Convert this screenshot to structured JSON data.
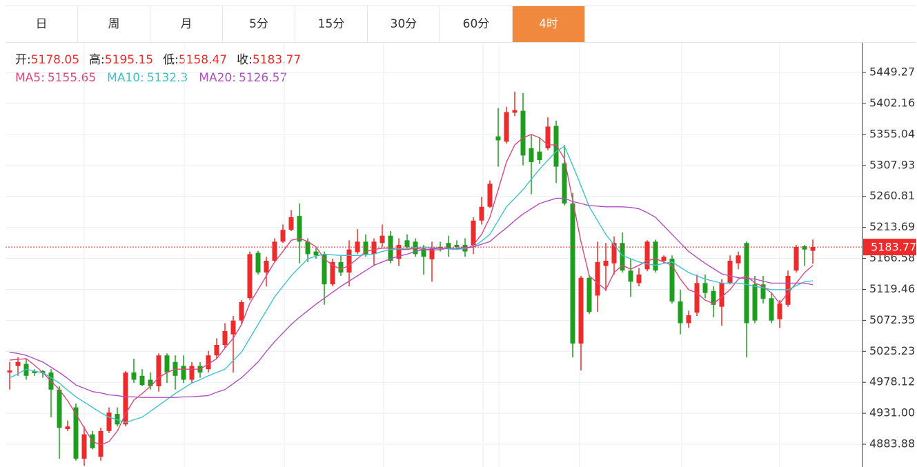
{
  "tabs": [
    "日",
    "周",
    "月",
    "5分",
    "15分",
    "30分",
    "60分",
    "4时"
  ],
  "active_tab": 7,
  "chart_data": {
    "type": "candlestick",
    "ohlc_labels": [
      "开:",
      "高:",
      "低:",
      "收:"
    ],
    "up_color": "#ee2a2a",
    "down_color": "#1d9e1d",
    "ylim": [
      4849.3,
      5494.4
    ],
    "yticks": [
      5449.27,
      5402.16,
      5355.04,
      5307.93,
      5260.81,
      5213.69,
      5166.58,
      5119.46,
      5072.35,
      5025.23,
      4978.12,
      {
        "value": 4931,
        "label": "4931.00"
      },
      4883.88
    ],
    "grid": true,
    "open": [
      4993,
      5003,
      5006,
      4995,
      4995,
      4993,
      4967,
      4907,
      4940,
      4862,
      4899,
      4865,
      4904,
      4930,
      4914,
      4993,
      4988,
      4982,
      4972,
      5019,
      5009,
      5003,
      4982,
      5003,
      4998,
      5019,
      5035,
      5051,
      5072,
      5106,
      5175,
      5145,
      5163,
      5192,
      5210,
      5231,
      5192,
      5177,
      5173,
      5127,
      5161,
      5145,
      5176,
      5192,
      5173,
      5190,
      5201,
      5166,
      5194,
      5192,
      5182,
      5165,
      5184,
      5190,
      5187,
      5187,
      5187,
      5224,
      5245,
      5352,
      5344,
      5388,
      5391,
      5334,
      5329,
      5334,
      5368,
      5311,
      5250,
      5037,
      5137,
      5110,
      5155,
      5159,
      5190,
      5148,
      5129,
      5150,
      5192,
      5163,
      5166,
      5101,
      5068,
      5084,
      5129,
      5117,
      5093,
      5129,
      5159,
      5190,
      5127,
      5127,
      5106,
      5074,
      5096,
      5148,
      5185,
      5178.05
    ],
    "high": [
      5009,
      5016,
      5014,
      4998,
      4997,
      4998,
      4972,
      4920,
      4946,
      4911,
      4904,
      4909,
      4940,
      4940,
      4995,
      5014,
      4998,
      4993,
      5022,
      5022,
      5019,
      5019,
      5009,
      5009,
      5026,
      5045,
      5068,
      5079,
      5103,
      5177,
      5178,
      5169,
      5197,
      5218,
      5240,
      5250,
      5197,
      5182,
      5177,
      5166,
      5171,
      5194,
      5211,
      5203,
      5197,
      5218,
      5208,
      5197,
      5203,
      5197,
      5187,
      5192,
      5192,
      5201,
      5194,
      5197,
      5229,
      5260,
      5285,
      5395,
      5397,
      5420,
      5418,
      5355,
      5350,
      5381,
      5376,
      5339,
      5266,
      5140,
      5142,
      5192,
      5190,
      5200,
      5206,
      5166,
      5152,
      5194,
      5195,
      5171,
      5171,
      5119,
      5087,
      5142,
      5142,
      5124,
      5135,
      5171,
      5177,
      5192,
      5140,
      5140,
      5114,
      5103,
      5148,
      5187,
      5187,
      5195.15
    ],
    "low": [
      4967,
      4988,
      4982,
      4988,
      4985,
      4925,
      4862,
      4904,
      4859,
      4851,
      4876,
      4859,
      4901,
      4911,
      4911,
      4977,
      4972,
      4967,
      4964,
      4977,
      4967,
      4977,
      4977,
      4985,
      4993,
      5014,
      5030,
      4993,
      5066,
      5103,
      5142,
      5124,
      5161,
      5190,
      5208,
      5159,
      5161,
      5166,
      5096,
      5124,
      5140,
      5124,
      5173,
      5169,
      5155,
      5184,
      5159,
      5155,
      5180,
      5169,
      5142,
      5131,
      5177,
      5169,
      5180,
      5169,
      5173,
      5218,
      5243,
      5306,
      5341,
      5383,
      5308,
      5264,
      5310,
      5331,
      5281,
      5247,
      5016,
      4996,
      5082,
      5085,
      5117,
      5142,
      5145,
      5108,
      5124,
      5147,
      5145,
      5159,
      5098,
      5051,
      5061,
      5079,
      5106,
      5077,
      5064,
      5127,
      5150,
      5016,
      5068,
      5098,
      5068,
      5061,
      5093,
      5145,
      5155,
      5158.47
    ],
    "close": [
      4996,
      5009,
      4988,
      4992,
      4992,
      4967,
      4909,
      4911,
      4862,
      4899,
      4878,
      4904,
      4932,
      4914,
      4993,
      4982,
      4974,
      4972,
      5019,
      4993,
      4988,
      4982,
      5003,
      4993,
      5019,
      5035,
      5056,
      5072,
      5100,
      5173,
      5145,
      5163,
      5192,
      5210,
      5229,
      5192,
      5173,
      5171,
      5127,
      5161,
      5145,
      5180,
      5192,
      5173,
      5192,
      5201,
      5163,
      5187,
      5184,
      5173,
      5169,
      5182,
      5182,
      5182,
      5184,
      5177,
      5224,
      5245,
      5280,
      5346,
      5389,
      5392,
      5323,
      5313,
      5316,
      5367,
      5306,
      5250,
      5037,
      5137,
      5085,
      5161,
      5163,
      5190,
      5148,
      5131,
      5142,
      5192,
      5148,
      5169,
      5101,
      5068,
      5080,
      5129,
      5114,
      5096,
      5129,
      5163,
      5171,
      5068,
      5072,
      5105,
      5072,
      5098,
      5140,
      5184,
      5180,
      5183.77
    ],
    "series": [
      {
        "name": "MA5:",
        "color": "#e0457b",
        "values": [
          5012,
          5013,
          5014,
          5004,
          4993,
          4980,
          4967,
          4950,
          4930,
          4909,
          4888,
          4883,
          4888,
          4904,
          4930,
          4951,
          4961,
          4972,
          4985,
          4993,
          4998,
          4998,
          4998,
          4998,
          5006,
          5014,
          5030,
          5045,
          5066,
          5098,
          5119,
          5140,
          5161,
          5177,
          5194,
          5197,
          5192,
          5184,
          5166,
          5156,
          5150,
          5156,
          5166,
          5177,
          5180,
          5182,
          5182,
          5180,
          5180,
          5182,
          5180,
          5179,
          5180,
          5182,
          5182,
          5180,
          5187,
          5203,
          5229,
          5271,
          5313,
          5339,
          5350,
          5355,
          5350,
          5339,
          5339,
          5318,
          5255,
          5192,
          5140,
          5129,
          5119,
          5145,
          5156,
          5150,
          5156,
          5163,
          5166,
          5161,
          5156,
          5135,
          5119,
          5114,
          5103,
          5098,
          5108,
          5119,
          5135,
          5140,
          5129,
          5124,
          5114,
          5098,
          5114,
          5129,
          5145,
          5155.65
        ]
      },
      {
        "name": "MA10:",
        "color": "#3cc3d0",
        "values": [
          4985,
          4991,
          4998,
          4995,
          4993,
          4985,
          4977,
          4966,
          4956,
          4948,
          4940,
          4932,
          4925,
          4921,
          4917,
          4921,
          4925,
          4934,
          4943,
          4952,
          4961,
          4969,
          4977,
          4982,
          4988,
          4993,
          4998,
          5011,
          5024,
          5045,
          5066,
          5087,
          5108,
          5124,
          5140,
          5153,
          5166,
          5170,
          5173,
          5172,
          5171,
          5171,
          5171,
          5172,
          5173,
          5177,
          5180,
          5181,
          5182,
          5183,
          5184,
          5183,
          5182,
          5181,
          5180,
          5182,
          5184,
          5193,
          5203,
          5224,
          5245,
          5258,
          5271,
          5287,
          5302,
          5316,
          5329,
          5337,
          5308,
          5277,
          5245,
          5224,
          5203,
          5187,
          5171,
          5166,
          5161,
          5158,
          5156,
          5159,
          5161,
          5153,
          5145,
          5140,
          5135,
          5132,
          5129,
          5129,
          5129,
          5127,
          5124,
          5122,
          5119,
          5119,
          5119,
          5125,
          5131,
          5132.3
        ]
      },
      {
        "name": "MA20:",
        "color": "#b04fc2",
        "values": [
          5024,
          5022,
          5019,
          5014,
          5009,
          5001,
          4993,
          4984,
          4974,
          4969,
          4964,
          4962,
          4959,
          4958,
          4956,
          4956,
          4955,
          4955,
          4955,
          4955,
          4955,
          4956,
          4956,
          4957,
          4958,
          4963,
          4967,
          4976,
          4985,
          4997,
          5009,
          5025,
          5040,
          5053,
          5066,
          5077,
          5087,
          5097,
          5106,
          5115,
          5124,
          5132,
          5140,
          5148,
          5156,
          5161,
          5166,
          5170,
          5173,
          5177,
          5180,
          5181,
          5182,
          5182,
          5182,
          5183,
          5184,
          5188,
          5192,
          5203,
          5213,
          5224,
          5234,
          5242,
          5250,
          5254,
          5258,
          5258,
          5253,
          5250,
          5247,
          5246,
          5245,
          5245,
          5245,
          5244,
          5242,
          5236,
          5229,
          5216,
          5203,
          5190,
          5177,
          5168,
          5159,
          5151,
          5143,
          5140,
          5137,
          5136,
          5135,
          5132,
          5129,
          5129,
          5129,
          5129,
          5129,
          5126.57
        ]
      }
    ]
  }
}
